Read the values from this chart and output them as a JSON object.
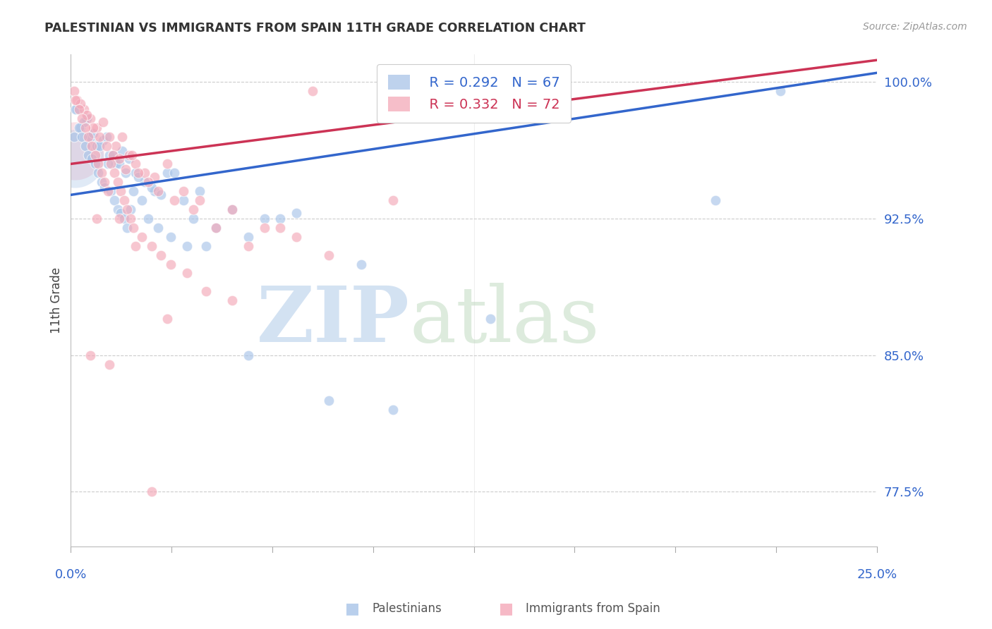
{
  "title": "PALESTINIAN VS IMMIGRANTS FROM SPAIN 11TH GRADE CORRELATION CHART",
  "source": "Source: ZipAtlas.com",
  "ylabel": "11th Grade",
  "xlim": [
    0.0,
    25.0
  ],
  "ylim": [
    74.5,
    101.5
  ],
  "yticks": [
    77.5,
    85.0,
    92.5,
    100.0
  ],
  "blue_label": "Palestinians",
  "pink_label": "Immigrants from Spain",
  "blue_R": 0.292,
  "blue_N": 67,
  "pink_R": 0.332,
  "pink_N": 72,
  "blue_color": "#a8c4e8",
  "pink_color": "#f4a8b8",
  "blue_line_color": "#3366cc",
  "pink_line_color": "#cc3355",
  "watermark_zip": "ZIP",
  "watermark_atlas": "atlas",
  "blue_line_x": [
    0.0,
    25.0
  ],
  "blue_line_y": [
    93.8,
    100.5
  ],
  "pink_line_x": [
    0.0,
    25.0
  ],
  "pink_line_y": [
    95.5,
    101.2
  ],
  "blue_points_x": [
    0.3,
    0.5,
    0.6,
    0.8,
    1.0,
    1.2,
    1.4,
    1.6,
    1.8,
    2.0,
    2.3,
    2.6,
    3.0,
    3.5,
    4.0,
    5.0,
    6.0,
    7.0,
    8.0,
    10.0,
    0.2,
    0.4,
    0.7,
    0.9,
    1.1,
    1.3,
    1.5,
    1.7,
    2.1,
    2.5,
    2.8,
    3.2,
    3.8,
    4.5,
    5.5,
    6.5,
    9.0,
    13.0,
    20.0,
    22.0,
    0.1,
    0.15,
    0.25,
    0.35,
    0.45,
    0.55,
    0.65,
    0.75,
    0.85,
    0.95,
    1.05,
    1.15,
    1.25,
    1.35,
    1.45,
    1.55,
    1.65,
    1.75,
    1.85,
    1.95,
    2.2,
    2.4,
    2.7,
    3.1,
    3.6,
    4.2,
    5.5
  ],
  "blue_points_y": [
    97.5,
    98.0,
    97.0,
    96.5,
    96.8,
    96.0,
    95.5,
    96.2,
    95.8,
    95.0,
    94.5,
    94.0,
    95.0,
    93.5,
    94.0,
    93.0,
    92.5,
    92.8,
    82.5,
    82.0,
    98.5,
    97.8,
    97.2,
    96.5,
    97.0,
    96.0,
    95.5,
    95.0,
    94.8,
    94.2,
    93.8,
    95.0,
    92.5,
    92.0,
    91.5,
    92.5,
    90.0,
    87.0,
    93.5,
    99.5,
    97.0,
    98.5,
    97.5,
    97.0,
    96.5,
    96.0,
    95.8,
    95.5,
    95.0,
    94.5,
    94.2,
    95.5,
    94.0,
    93.5,
    93.0,
    92.8,
    92.5,
    92.0,
    93.0,
    94.0,
    93.5,
    92.5,
    92.0,
    91.5,
    91.0,
    91.0,
    85.0
  ],
  "pink_points_x": [
    0.2,
    0.4,
    0.6,
    0.8,
    1.0,
    1.2,
    1.4,
    1.6,
    1.8,
    2.0,
    2.3,
    2.6,
    3.0,
    3.5,
    4.0,
    5.0,
    6.0,
    7.0,
    8.0,
    1.5,
    0.1,
    0.3,
    0.5,
    0.7,
    0.9,
    1.1,
    1.3,
    1.5,
    1.7,
    1.9,
    2.1,
    2.4,
    2.7,
    3.2,
    3.8,
    4.5,
    5.5,
    0.15,
    0.25,
    0.35,
    0.45,
    0.55,
    0.65,
    0.75,
    0.85,
    0.95,
    1.05,
    1.15,
    1.25,
    1.35,
    1.45,
    1.55,
    1.65,
    1.75,
    1.85,
    1.95,
    2.2,
    2.5,
    2.8,
    3.1,
    3.6,
    4.2,
    5.0,
    6.5,
    0.8,
    2.0,
    7.5,
    10.0,
    0.6,
    1.2,
    2.5,
    3.0
  ],
  "pink_points_y": [
    99.0,
    98.5,
    98.0,
    97.5,
    97.8,
    97.0,
    96.5,
    97.0,
    96.0,
    95.5,
    95.0,
    94.8,
    95.5,
    94.0,
    93.5,
    93.0,
    92.0,
    91.5,
    90.5,
    92.5,
    99.5,
    98.8,
    98.2,
    97.5,
    97.0,
    96.5,
    96.0,
    95.8,
    95.2,
    96.0,
    95.0,
    94.5,
    94.0,
    93.5,
    93.0,
    92.0,
    91.0,
    99.0,
    98.5,
    98.0,
    97.5,
    97.0,
    96.5,
    96.0,
    95.5,
    95.0,
    94.5,
    94.0,
    95.5,
    95.0,
    94.5,
    94.0,
    93.5,
    93.0,
    92.5,
    92.0,
    91.5,
    91.0,
    90.5,
    90.0,
    89.5,
    88.5,
    88.0,
    92.0,
    92.5,
    91.0,
    99.5,
    93.5,
    85.0,
    84.5,
    77.5,
    87.0
  ],
  "cluster_blue_x": 0.12,
  "cluster_blue_y": 95.8,
  "cluster_blue_size": 3500,
  "cluster_pink_x": 0.12,
  "cluster_pink_y": 96.2,
  "cluster_pink_size": 3500
}
